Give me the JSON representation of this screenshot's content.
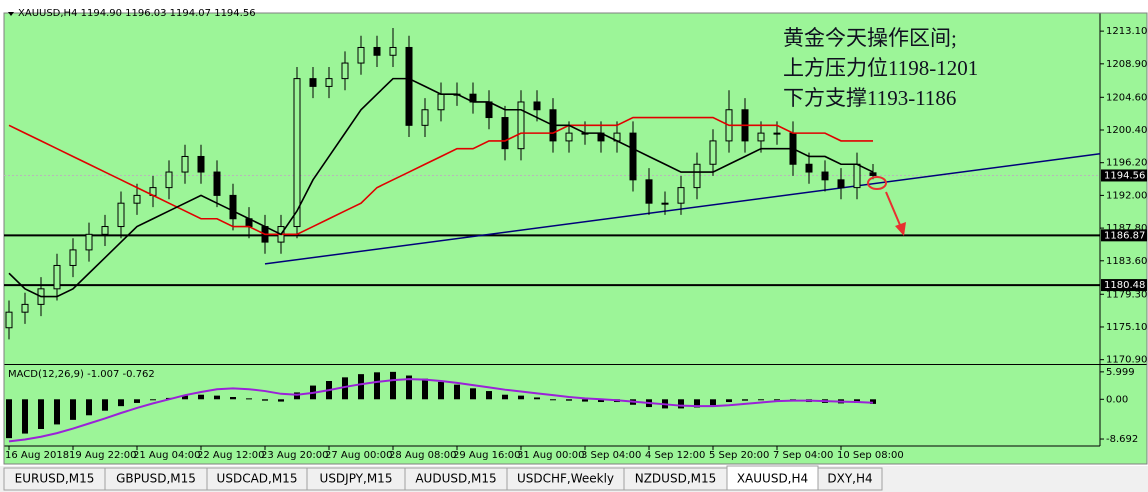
{
  "header": "XAUUSD,H4  1194.90 1196.03 1194.07 1194.56",
  "annotation": [
    "黄金今天操作区间;",
    "上方压力位1198-1201",
    "下方支撑1193-1186"
  ],
  "tabs": [
    "EURUSD,M15",
    "GBPUSD,M15",
    "USDCAD,M15",
    "USDJPY,M15",
    "AUDUSD,M15",
    "USDCHF,Weekly",
    "NZDUSD,M15",
    "XAUUSD,H4",
    "DXY,H4"
  ],
  "active_tab": 7,
  "chart_data": {
    "type": "candlestick",
    "ylim": [
      1170.6,
      1215.3
    ],
    "yticks": [
      {
        "value": 1213.1,
        "label": "1213.10"
      },
      {
        "value": 1208.9,
        "label": "1208.90"
      },
      {
        "value": 1204.6,
        "label": "1204.60"
      },
      {
        "value": 1200.4,
        "label": "1200.40"
      },
      {
        "value": 1196.2,
        "label": "1196.20"
      },
      {
        "value": 1192,
        "label": "1192.00"
      },
      {
        "value": 1187.8,
        "label": "1187.80"
      },
      {
        "value": 1183.6,
        "label": "1183.60"
      },
      {
        "value": 1179.3,
        "label": "1179.30"
      },
      {
        "value": 1175.1,
        "label": "1175.10"
      },
      {
        "value": 1170.9,
        "label": "1170.90"
      }
    ],
    "x_labels": [
      "16 Aug 2018",
      "19 Aug 22:00",
      "21 Aug 04:00",
      "22 Aug 12:00",
      "23 Aug 20:00",
      "27 Aug 00:00",
      "28 Aug 08:00",
      "29 Aug 16:00",
      "31 Aug 00:00",
      "3 Sep 04:00",
      "4 Sep 12:00",
      "5 Sep 20:00",
      "7 Sep 04:00",
      "10 Sep 08:00"
    ],
    "open": [
      1175,
      1177,
      1178,
      1180,
      1183,
      1185,
      1187,
      1188,
      1191,
      1192,
      1193,
      1195,
      1197,
      1195,
      1192,
      1189,
      1188,
      1186,
      1188,
      1207,
      1206,
      1207,
      1209,
      1211,
      1210,
      1211,
      1201,
      1203,
      1205,
      1205,
      1204,
      1202,
      1198,
      1204,
      1203,
      1199,
      1200,
      1200,
      1199,
      1200,
      1194,
      1191,
      1191,
      1193,
      1196,
      1199,
      1203,
      1199,
      1200,
      1200,
      1196,
      1195,
      1194,
      1193,
      1194.9
    ],
    "high": [
      1178.5,
      1179.5,
      1181.5,
      1184.5,
      1186.5,
      1188.5,
      1189.5,
      1192.5,
      1193.5,
      1194.5,
      1196.5,
      1198.5,
      1198.5,
      1196.5,
      1193.5,
      1190.5,
      1189.5,
      1189.5,
      1208.5,
      1208.5,
      1208.5,
      1210.5,
      1212.5,
      1212.5,
      1213.5,
      1212.5,
      1204.5,
      1206.5,
      1206.5,
      1206.5,
      1205.5,
      1203.5,
      1205.5,
      1205.5,
      1204.5,
      1201.5,
      1201.5,
      1201.5,
      1201.5,
      1201.5,
      1195.5,
      1192.5,
      1194.5,
      1197.5,
      1200.5,
      1205.5,
      1204.5,
      1201.5,
      1201.5,
      1201.5,
      1197.5,
      1196.5,
      1195.5,
      1197.5,
      1196.03
    ],
    "low": [
      1173.5,
      1175.5,
      1176.5,
      1178.5,
      1181.5,
      1183.5,
      1185.5,
      1186.5,
      1189.5,
      1190.5,
      1191.5,
      1193.5,
      1193.5,
      1190.5,
      1187.5,
      1186.5,
      1184.5,
      1184.5,
      1186.5,
      1204.5,
      1204.5,
      1205.5,
      1207.5,
      1208.5,
      1208.5,
      1199.5,
      1199.5,
      1201.5,
      1203.5,
      1202.5,
      1200.5,
      1196.5,
      1196.5,
      1201.5,
      1197.5,
      1197.5,
      1198.5,
      1197.5,
      1197.5,
      1192.5,
      1189.5,
      1189.5,
      1189.5,
      1191.5,
      1194.5,
      1197.5,
      1197.5,
      1197.5,
      1198.5,
      1194.5,
      1193.5,
      1192.5,
      1191.5,
      1191.5,
      1194.07
    ],
    "close": [
      1177,
      1178,
      1180,
      1183,
      1185,
      1187,
      1188,
      1191,
      1192,
      1193,
      1195,
      1197,
      1195,
      1192,
      1189,
      1188,
      1186,
      1188,
      1207,
      1206,
      1207,
      1209,
      1211,
      1210,
      1211,
      1201,
      1203,
      1205,
      1205,
      1204,
      1202,
      1198,
      1204,
      1203,
      1199,
      1200,
      1200,
      1199,
      1200,
      1194,
      1191,
      1191,
      1193,
      1196,
      1199,
      1203,
      1199,
      1200,
      1200,
      1196,
      1195,
      1194,
      1193,
      1196,
      1194.56
    ],
    "ma_fast": {
      "color": "#000000",
      "values": [
        1182,
        1180,
        1179,
        1179,
        1180,
        1182,
        1184,
        1186,
        1188,
        1189,
        1190,
        1191,
        1192,
        1191,
        1190,
        1189,
        1188,
        1187,
        1190,
        1194,
        1197,
        1200,
        1203,
        1205,
        1207,
        1207,
        1206,
        1205,
        1205,
        1204,
        1204,
        1203,
        1203,
        1202,
        1201,
        1201,
        1200,
        1200,
        1199,
        1198,
        1197,
        1196,
        1195,
        1195,
        1195,
        1196,
        1197,
        1198,
        1198,
        1198,
        1197,
        1197,
        1196,
        1196,
        1195
      ]
    },
    "ma_slow": {
      "color": "#e00000",
      "values": [
        1201,
        1200,
        1199,
        1198,
        1197,
        1196,
        1195,
        1194,
        1193,
        1192,
        1191,
        1190,
        1189,
        1189,
        1188,
        1188,
        1187,
        1187,
        1187,
        1188,
        1189,
        1190,
        1191,
        1193,
        1194,
        1195,
        1196,
        1197,
        1198,
        1198,
        1199,
        1199,
        1200,
        1200,
        1200,
        1201,
        1201,
        1201,
        1201,
        1202,
        1202,
        1202,
        1202,
        1202,
        1202,
        1201,
        1201,
        1201,
        1201,
        1200,
        1200,
        1200,
        1199,
        1199,
        1199
      ]
    },
    "trendline": {
      "color": "#00007a",
      "values": [
        1183.2,
        1193.5
      ]
    },
    "levels": [
      {
        "value": 1186.87,
        "label": "1186.87"
      },
      {
        "value": 1180.48,
        "label": "1180.48"
      }
    ],
    "last": {
      "value": 1194.56,
      "label": "1194.56"
    },
    "macd": {
      "title": "MACD(12,26,9) -1.007 -0.762",
      "ylim": [
        -10,
        7.5
      ],
      "yticks": [
        5.999,
        {
          "value": 0,
          "label": "0.00"
        },
        -8.692
      ],
      "histogram": [
        -8.5,
        -7.5,
        -6.5,
        -5.5,
        -4.5,
        -3.5,
        -2.5,
        -1.5,
        -0.8,
        -0.2,
        0.3,
        0.8,
        1.0,
        0.8,
        0.5,
        0.2,
        -0.3,
        -0.5,
        1.5,
        3.0,
        4.0,
        4.8,
        5.5,
        5.9,
        6.0,
        5.2,
        4.5,
        3.8,
        3.2,
        2.4,
        1.8,
        1.0,
        0.8,
        0.4,
        0,
        -0.3,
        -0.5,
        -0.6,
        -0.6,
        -1.2,
        -1.7,
        -2.0,
        -2.0,
        -1.8,
        -1.3,
        -0.6,
        -0.3,
        0,
        0,
        -0.4,
        -0.6,
        -0.8,
        -0.9,
        -0.8,
        -1.007
      ],
      "signal": {
        "color": "#9a22d8",
        "values": [
          -9.2,
          -8.8,
          -8.2,
          -7.4,
          -6.4,
          -5.3,
          -4.2,
          -3.0,
          -1.9,
          -0.9,
          0,
          0.9,
          1.6,
          2.2,
          2.4,
          2.2,
          1.8,
          1.2,
          1.0,
          1.4,
          2.0,
          2.7,
          3.3,
          3.8,
          4.2,
          4.4,
          4.3,
          4.0,
          3.6,
          3.1,
          2.6,
          2.1,
          1.7,
          1.3,
          0.9,
          0.5,
          0.2,
          0,
          -0.2,
          -0.5,
          -0.8,
          -1.1,
          -1.4,
          -1.5,
          -1.5,
          -1.3,
          -1.0,
          -0.7,
          -0.4,
          -0.3,
          -0.3,
          -0.4,
          -0.5,
          -0.6,
          -0.762
        ]
      }
    }
  }
}
